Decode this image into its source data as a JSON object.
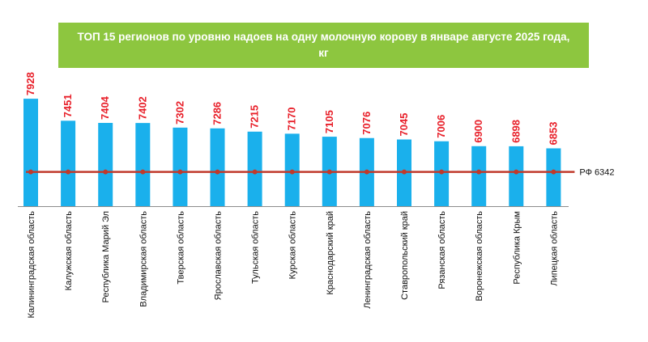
{
  "chart_data": {
    "type": "bar",
    "title": "ТОП 15 регионов по уровню надоев на одну молочную корову в январе августе 2025 года, кг",
    "categories": [
      "Калининградская область",
      "Калужская область",
      "Республика Марий Эл",
      "Владимирская область",
      "Тверская область",
      "Ярославская область",
      "Тульская область",
      "Курская область",
      "Краснодарский край",
      "Ленинградская область",
      "Ставропольский край",
      "Рязанская область",
      "Воронежская область",
      "Республика Крым",
      "Липецкая область"
    ],
    "values": [
      7928,
      7451,
      7404,
      7402,
      7302,
      7286,
      7215,
      7170,
      7105,
      7076,
      7045,
      7006,
      6900,
      6898,
      6853
    ],
    "reference_line": {
      "label": "РФ 6342",
      "value": 6342
    },
    "ylim": [
      5600,
      8000
    ],
    "xlabel": "",
    "ylabel": "",
    "grid": false,
    "colors": {
      "bar": "#1ab0ec",
      "value_label": "#e8202a",
      "reference_line": "#c0392b",
      "title_bg": "#8dc63f",
      "title_text": "#ffffff"
    }
  }
}
